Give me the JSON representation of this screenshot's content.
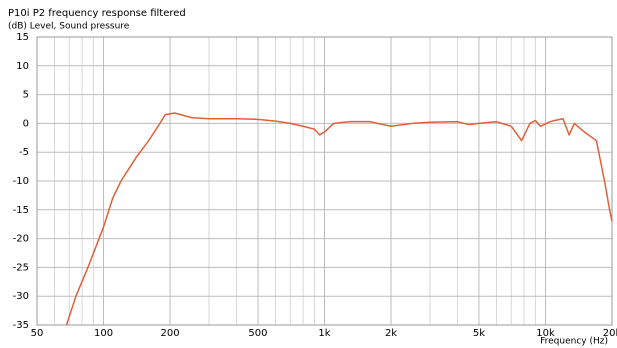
{
  "chart_data": {
    "type": "line",
    "title": "P10i P2 frequency response filtered",
    "subtitle": "(dB)  Level, Sound pressure",
    "x_label": "Frequency  (Hz)",
    "x_scale": "log",
    "xlim": [
      50,
      20000
    ],
    "ylim": [
      -35,
      15
    ],
    "xticks": [
      50,
      100,
      200,
      500,
      {
        "value": 1000,
        "label": "1k"
      },
      {
        "value": 2000,
        "label": "2k"
      },
      {
        "value": 5000,
        "label": "5k"
      },
      {
        "value": 10000,
        "label": "10k"
      },
      {
        "value": 20000,
        "label": "20k"
      }
    ],
    "xminorticks": [
      60,
      70,
      80,
      90,
      300,
      400,
      600,
      700,
      800,
      900,
      3000,
      4000,
      6000,
      7000,
      8000,
      9000
    ],
    "yticks": [
      15,
      10,
      5,
      0,
      -5,
      -10,
      -15,
      -20,
      -25,
      -30,
      -35
    ],
    "grid": true,
    "x": [
      68,
      75,
      85,
      100,
      110,
      120,
      140,
      160,
      180,
      190,
      210,
      250,
      300,
      400,
      500,
      600,
      700,
      800,
      900,
      950,
      1000,
      1100,
      1300,
      1600,
      2000,
      2500,
      3000,
      4000,
      4500,
      5000,
      6000,
      7000,
      7800,
      8500,
      9000,
      9500,
      10500,
      11000,
      12000,
      12800,
      13500,
      15000,
      17000,
      18500,
      19500,
      20000
    ],
    "series": [
      {
        "color": "#e0603a",
        "values": [
          -35,
          -30,
          -25,
          -18,
          -13,
          -10,
          -6,
          -3,
          0,
          1.5,
          1.8,
          1,
          0.8,
          0.8,
          0.7,
          0.4,
          0,
          -0.5,
          -1,
          -2,
          -1.5,
          0,
          0.3,
          0.3,
          -0.5,
          0,
          0.2,
          0.3,
          -0.2,
          0,
          0.3,
          -0.5,
          -3,
          0,
          0.5,
          -0.5,
          0.3,
          0.5,
          0.8,
          -2,
          0,
          -1.5,
          -3,
          -10,
          -15,
          -17
        ]
      }
    ]
  }
}
